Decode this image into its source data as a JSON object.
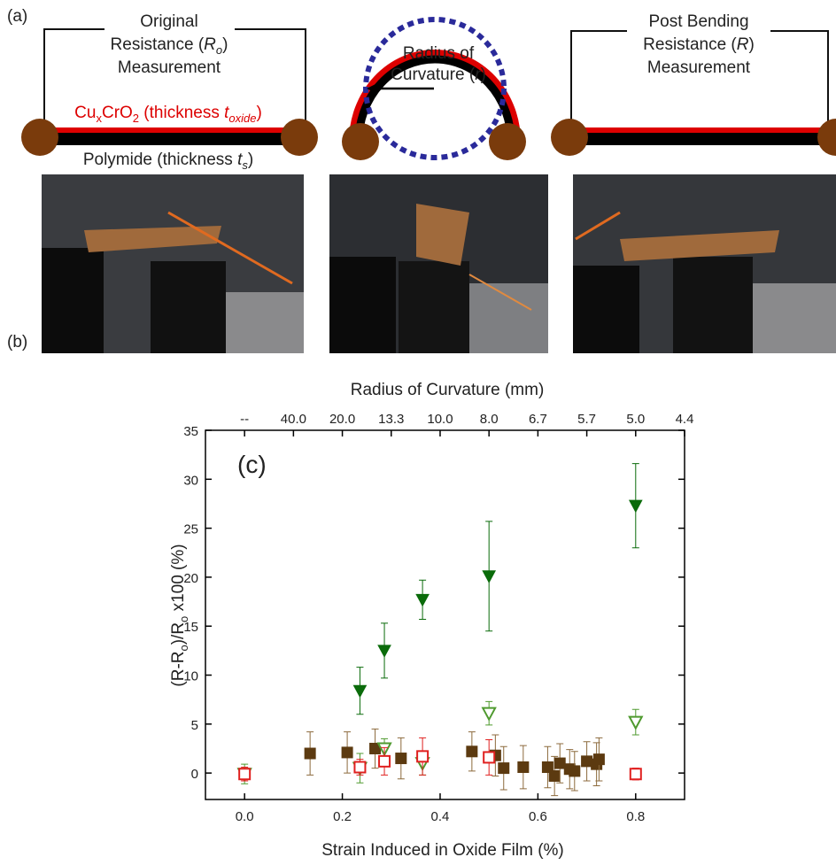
{
  "panels": {
    "a": {
      "label": "(a)",
      "original": {
        "line1": "Original",
        "line2": [
          "Resistance (",
          "R",
          "o",
          ")"
        ],
        "line3": "Measurement"
      },
      "oxide": [
        "Cu",
        "x",
        "CrO",
        "2",
        " (thickness ",
        "t",
        "oxide",
        ")"
      ],
      "substrate": [
        "Polymide (thickness ",
        "t",
        "s",
        ")"
      ],
      "radius": {
        "line1": "Radius of",
        "line2": [
          "Curvature (",
          "r",
          ")"
        ]
      },
      "post": {
        "line1": "Post Bending",
        "line2": [
          "Resistance (",
          "R",
          ")"
        ],
        "line3": "Measurement"
      }
    },
    "b": {
      "label": "(b)"
    }
  },
  "chart_data": {
    "type": "scatter",
    "annotation": "(c)",
    "xlabel": "Strain Induced in Oxide Film (%)",
    "x2label": "Radius of Curvature (mm)",
    "ylabel": [
      "(R-R",
      "o",
      ")/R",
      "o",
      " x100 (%)"
    ],
    "xlim": [
      -0.08,
      0.9
    ],
    "ylim": [
      -2.7,
      35
    ],
    "xticks": [
      {
        "value": 0,
        "label": "0.0"
      },
      0.2,
      0.4,
      0.6,
      0.8
    ],
    "yticks": [
      0,
      5,
      10,
      15,
      20,
      25,
      30,
      35
    ],
    "x2ticks": [
      {
        "value": 0,
        "label": "--"
      },
      {
        "value": 0.1,
        "label": "40.0"
      },
      {
        "value": 0.2,
        "label": "20.0"
      },
      {
        "value": 0.3,
        "label": "13.3"
      },
      {
        "value": 0.4,
        "label": "10.0"
      },
      {
        "value": 0.5,
        "label": "8.0"
      },
      {
        "value": 0.6,
        "label": "6.7"
      },
      {
        "value": 0.7,
        "label": "5.7"
      },
      {
        "value": 0.8,
        "label": "5.0"
      },
      {
        "value": 0.9,
        "label": "4.4"
      }
    ],
    "series": [
      {
        "marker": "square",
        "filled": true,
        "color": "#5c3a10",
        "error_color": "#8c6a3c",
        "x": [
          0.134,
          0.21,
          0.267,
          0.32,
          0.465,
          0.513,
          0.53,
          0.57,
          0.62,
          0.634,
          0.645,
          0.665,
          0.675,
          0.7,
          0.72,
          0.725
        ],
        "values": [
          2.0,
          2.1,
          2.5,
          1.5,
          2.2,
          1.8,
          0.5,
          0.6,
          0.6,
          -0.3,
          1.0,
          0.4,
          0.2,
          1.2,
          0.9,
          1.4
        ],
        "errors": [
          2.2,
          2.1,
          2.0,
          2.1,
          2.0,
          2.1,
          2.2,
          2.2,
          2.1,
          2.0,
          2.0,
          2.0,
          2.0,
          2.0,
          2.2,
          2.2
        ]
      },
      {
        "marker": "triangle-down",
        "filled": true,
        "color": "#0a6b0a",
        "error_color": "#0a6b0a",
        "x": [
          0.236,
          0.286,
          0.364,
          0.5,
          0.8
        ],
        "values": [
          8.4,
          12.5,
          17.7,
          20.1,
          27.3
        ],
        "errors": [
          2.4,
          2.8,
          2.0,
          5.6,
          4.3
        ]
      },
      {
        "marker": "triangle-down",
        "filled": false,
        "color": "#4f9a2f",
        "error_color": "#4f9a2f",
        "x": [
          0,
          0.236,
          0.286,
          0.364,
          0.5,
          0.8
        ],
        "values": [
          -0.1,
          0.5,
          2.5,
          1.0,
          6.1,
          5.2
        ],
        "errors": [
          1.0,
          1.5,
          1.0,
          1.2,
          1.2,
          1.3
        ]
      },
      {
        "marker": "square",
        "filled": false,
        "color": "#e0201f",
        "error_color": "#e0201f",
        "x": [
          0,
          0.236,
          0.286,
          0.364,
          0.5,
          0.8
        ],
        "values": [
          -0.1,
          0.6,
          1.2,
          1.7,
          1.6,
          -0.1
        ],
        "errors": [
          0.7,
          0.8,
          1.4,
          1.9,
          1.8,
          0.6
        ]
      }
    ]
  }
}
